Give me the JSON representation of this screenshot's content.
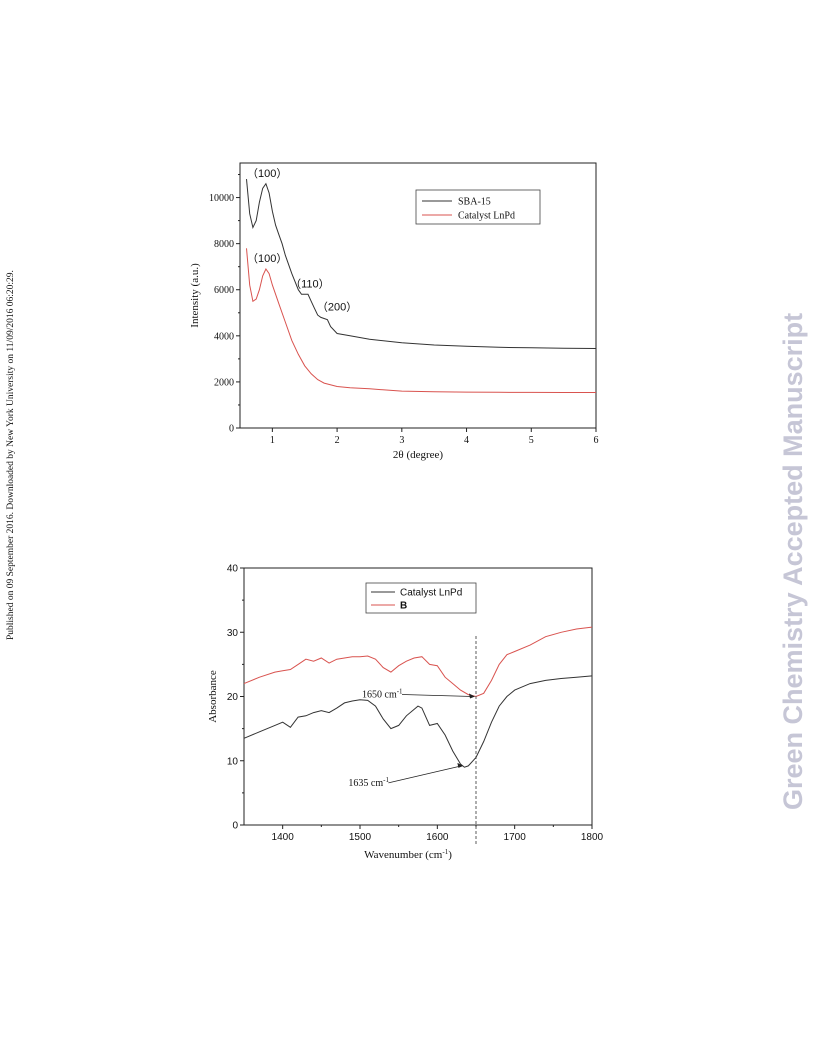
{
  "side_note": "Published on 09 September 2016. Downloaded by New York University on 11/09/2016 06:20:29.",
  "watermark": "Green Chemistry Accepted Manuscript",
  "colors": {
    "black_series": "#333333",
    "red_series": "#d9534f",
    "watermark": "#c6c6d6"
  },
  "chart_data": [
    {
      "type": "line",
      "xlabel": "2θ (degree)",
      "ylabel": "Intensity (a.u.)",
      "xlim": [
        0.5,
        6
      ],
      "ylim": [
        0,
        11500
      ],
      "xticks": [
        1,
        2,
        3,
        4,
        5,
        6
      ],
      "yticks": [
        0,
        2000,
        4000,
        6000,
        8000,
        10000
      ],
      "legend_position": "top-right",
      "series": [
        {
          "name": "SBA-15",
          "color": "#333333",
          "x": [
            0.6,
            0.65,
            0.7,
            0.75,
            0.8,
            0.85,
            0.9,
            0.95,
            1.0,
            1.05,
            1.1,
            1.15,
            1.2,
            1.3,
            1.4,
            1.45,
            1.5,
            1.55,
            1.6,
            1.65,
            1.7,
            1.75,
            1.8,
            1.85,
            1.9,
            2.0,
            2.2,
            2.5,
            3.0,
            3.5,
            4.0,
            4.5,
            5.0,
            5.5,
            6.0
          ],
          "y": [
            10800,
            9300,
            8700,
            9000,
            9800,
            10400,
            10600,
            10200,
            9400,
            8800,
            8400,
            8000,
            7500,
            6700,
            6000,
            5800,
            5800,
            5800,
            5500,
            5200,
            4900,
            4800,
            4750,
            4700,
            4400,
            4100,
            4000,
            3850,
            3700,
            3600,
            3550,
            3500,
            3480,
            3460,
            3450
          ]
        },
        {
          "name": "Catalyst LnPd",
          "color": "#d9534f",
          "x": [
            0.6,
            0.65,
            0.7,
            0.75,
            0.8,
            0.85,
            0.9,
            0.95,
            1.0,
            1.05,
            1.1,
            1.2,
            1.3,
            1.4,
            1.5,
            1.6,
            1.7,
            1.8,
            2.0,
            2.2,
            2.5,
            3.0,
            3.5,
            4.0,
            4.5,
            5.0,
            5.5,
            6.0
          ],
          "y": [
            7800,
            6200,
            5500,
            5600,
            6000,
            6600,
            6900,
            6700,
            6200,
            5800,
            5400,
            4600,
            3800,
            3200,
            2700,
            2350,
            2100,
            1950,
            1800,
            1750,
            1700,
            1600,
            1570,
            1560,
            1550,
            1545,
            1540,
            1540
          ]
        }
      ],
      "annotations": [
        {
          "text": "（100）",
          "x": 0.92,
          "y": 10900
        },
        {
          "text": "（100）",
          "x": 0.92,
          "y": 7200
        },
        {
          "text": "（110）",
          "x": 1.58,
          "y": 6100
        },
        {
          "text": "（200）",
          "x": 2.0,
          "y": 5100
        }
      ]
    },
    {
      "type": "line",
      "xlabel": "Wavenumber (cm-1)",
      "ylabel": "Absorbance",
      "xlim": [
        1350,
        1800
      ],
      "ylim": [
        0,
        40
      ],
      "xticks": [
        1400,
        1500,
        1600,
        1700,
        1800
      ],
      "yticks": [
        0,
        10,
        20,
        30,
        40
      ],
      "legend_position": "top-left",
      "series": [
        {
          "name": "Catalyst LnPd",
          "color": "#333333",
          "x": [
            1350,
            1370,
            1390,
            1400,
            1410,
            1420,
            1430,
            1440,
            1450,
            1460,
            1470,
            1480,
            1490,
            1500,
            1510,
            1520,
            1530,
            1540,
            1550,
            1560,
            1570,
            1575,
            1580,
            1590,
            1600,
            1610,
            1620,
            1630,
            1635,
            1640,
            1650,
            1660,
            1670,
            1680,
            1690,
            1700,
            1720,
            1740,
            1760,
            1780,
            1800
          ],
          "y": [
            13.5,
            14.5,
            15.5,
            16.0,
            15.2,
            16.8,
            17.0,
            17.5,
            17.8,
            17.5,
            18.2,
            19.0,
            19.3,
            19.5,
            19.4,
            18.5,
            16.5,
            15.0,
            15.5,
            17.0,
            18.0,
            18.5,
            18.2,
            15.5,
            15.8,
            14.0,
            11.5,
            9.5,
            9.0,
            9.2,
            10.5,
            13.0,
            16.0,
            18.5,
            20.0,
            21.0,
            22.0,
            22.5,
            22.8,
            23.0,
            23.2
          ]
        },
        {
          "name": "B",
          "color": "#d9534f",
          "x": [
            1350,
            1370,
            1390,
            1400,
            1410,
            1420,
            1430,
            1440,
            1450,
            1460,
            1470,
            1480,
            1490,
            1500,
            1510,
            1520,
            1530,
            1540,
            1550,
            1560,
            1570,
            1580,
            1590,
            1600,
            1610,
            1620,
            1630,
            1640,
            1650,
            1660,
            1670,
            1680,
            1690,
            1700,
            1720,
            1740,
            1760,
            1780,
            1800
          ],
          "y": [
            22.0,
            23.0,
            23.8,
            24.0,
            24.2,
            25.0,
            25.8,
            25.5,
            26.0,
            25.2,
            25.8,
            26.0,
            26.2,
            26.2,
            26.3,
            25.8,
            24.5,
            23.8,
            24.8,
            25.5,
            26.0,
            26.2,
            25.0,
            24.8,
            23.0,
            22.0,
            21.0,
            20.3,
            20.0,
            20.5,
            22.5,
            25.0,
            26.5,
            27.0,
            28.0,
            29.3,
            30.0,
            30.5,
            30.8
          ]
        }
      ],
      "reference_line_x": 1650,
      "annotations": [
        {
          "text": "1650 cm",
          "sup": "-1",
          "at_x": 1650,
          "at_y": 20.0
        },
        {
          "text": "1635 cm",
          "sup": "-1",
          "at_x": 1635,
          "at_y": 9.2
        }
      ]
    }
  ]
}
